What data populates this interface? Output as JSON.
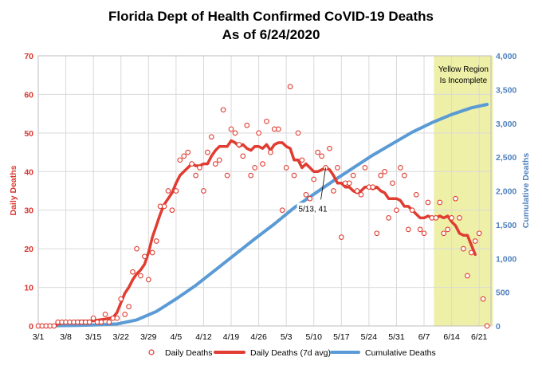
{
  "chart_data": {
    "type": "line",
    "title": "Florida Dept of Health Confirmed CoVID-19 Deaths",
    "subtitle": "As of 6/24/2020",
    "ylabel_left": "Daily Deaths",
    "ylabel_right": "Cumulative Deaths",
    "ylim_left": [
      0,
      70
    ],
    "ylim_right": [
      0,
      4000
    ],
    "yticks_left": [
      "0",
      "10",
      "20",
      "30",
      "40",
      "50",
      "60",
      "70"
    ],
    "yticks_right": [
      "0",
      "500",
      "1,000",
      "1,500",
      "2,000",
      "2,500",
      "3,000",
      "3,500",
      "4,000"
    ],
    "x_tick_labels": [
      "3/1",
      "3/8",
      "3/15",
      "3/22",
      "3/29",
      "4/5",
      "4/12",
      "4/19",
      "4/26",
      "5/3",
      "5/10",
      "5/17",
      "5/24",
      "5/31",
      "6/7",
      "6/14",
      "6/21"
    ],
    "x_day_start": "3/1",
    "x_day_count": 116,
    "grid": true,
    "legend_position": "bottom",
    "legend": [
      "Daily Deaths",
      "Daily Deaths (7d avg)",
      "Cumulative Deaths"
    ],
    "region": {
      "label_line1": "Yellow Region",
      "label_line2": "Is Incomplete",
      "from_day": 100.5,
      "to_day": 115.5,
      "color": "#eef0a8"
    },
    "annotation": {
      "text": "5/13, 41",
      "day": 73,
      "value": 41
    },
    "colors": {
      "daily": "#e03c31",
      "avg": "#e03c31",
      "cumulative": "#5b9bd5",
      "left_axis": "#d9342b",
      "right_axis": "#4f81bd"
    },
    "series": [
      {
        "name": "Daily Deaths",
        "style": "markers",
        "x": [
          0,
          1,
          2,
          3,
          4,
          5,
          6,
          7,
          8,
          9,
          10,
          11,
          12,
          13,
          14,
          15,
          16,
          17,
          18,
          19,
          20,
          21,
          22,
          23,
          24,
          25,
          26,
          27,
          28,
          29,
          30,
          31,
          32,
          33,
          34,
          35,
          36,
          37,
          38,
          39,
          40,
          41,
          42,
          43,
          44,
          45,
          46,
          47,
          48,
          49,
          50,
          51,
          52,
          53,
          54,
          55,
          56,
          57,
          58,
          59,
          60,
          61,
          62,
          63,
          64,
          65,
          66,
          67,
          68,
          69,
          70,
          71,
          72,
          73,
          74,
          75,
          76,
          77,
          78,
          79,
          80,
          81,
          82,
          83,
          84,
          85,
          86,
          87,
          88,
          89,
          90,
          91,
          92,
          93,
          94,
          95,
          96,
          97,
          98,
          99,
          100,
          101,
          102,
          103,
          104,
          105,
          106,
          107,
          108,
          109,
          110,
          111,
          112,
          113,
          114
        ],
        "values": [
          0,
          0,
          0,
          0,
          0,
          1,
          1,
          1,
          1,
          1,
          1,
          1,
          1,
          1,
          2,
          1,
          1,
          3,
          1,
          2,
          2,
          7,
          3,
          5,
          14,
          20,
          13,
          18,
          12,
          19,
          22,
          31,
          31,
          35,
          30,
          35,
          43,
          44,
          45,
          42,
          39,
          41,
          35,
          45,
          49,
          42,
          43,
          56,
          39,
          51,
          50,
          47,
          44,
          52,
          39,
          41,
          50,
          42,
          53,
          45,
          51,
          51,
          30,
          41,
          62,
          39,
          50,
          43,
          34,
          33,
          38,
          45,
          44,
          41,
          46,
          35,
          41,
          23,
          37,
          37,
          39,
          35,
          34,
          41,
          36,
          36,
          24,
          39,
          40,
          28,
          37,
          30,
          41,
          39,
          25,
          30,
          34,
          25,
          24,
          32,
          28,
          28,
          32,
          24,
          25,
          28,
          33,
          28,
          20,
          13,
          19,
          22,
          24,
          7,
          0
        ]
      },
      {
        "name": "Daily Deaths (7d avg)",
        "style": "line",
        "x": [
          0,
          2,
          4,
          5,
          7,
          9,
          11,
          13,
          15,
          17,
          19,
          20,
          21,
          22,
          23,
          24,
          25,
          26,
          27,
          28,
          29,
          30,
          31,
          32,
          33,
          34,
          35,
          36,
          37,
          38,
          39,
          40,
          41,
          42,
          43,
          44,
          45,
          46,
          47,
          48,
          49,
          50,
          51,
          52,
          53,
          54,
          55,
          56,
          57,
          58,
          59,
          60,
          61,
          62,
          63,
          64,
          65,
          66,
          67,
          68,
          69,
          70,
          71,
          72,
          73,
          74,
          75,
          76,
          77,
          78,
          79,
          80,
          81,
          82,
          83,
          84,
          85,
          86,
          87,
          88,
          89,
          90,
          91,
          92,
          93,
          94,
          95,
          96,
          97,
          98,
          99,
          100,
          101,
          102,
          103,
          104,
          105,
          106,
          107,
          108,
          109,
          110,
          111
        ],
        "values": [
          0,
          0,
          0,
          0.5,
          1,
          1.2,
          1.3,
          1.3,
          1.5,
          1.8,
          2.2,
          3.5,
          6,
          8.5,
          10,
          12,
          13.5,
          14.5,
          16,
          19,
          23,
          26,
          29,
          31.5,
          33,
          34.5,
          37,
          39,
          40,
          41,
          42,
          41.5,
          41.5,
          42,
          42,
          44,
          45.5,
          46.5,
          46.5,
          46.5,
          48,
          47.5,
          46.5,
          47,
          46,
          45.5,
          46.5,
          46.5,
          46,
          47,
          45.5,
          47,
          47.5,
          47.5,
          46.5,
          46,
          43,
          43,
          41,
          42,
          41,
          40,
          40,
          40.5,
          41,
          40.5,
          39,
          37,
          37,
          36,
          36,
          35,
          34.5,
          35,
          36,
          36,
          35.5,
          36,
          35,
          34.5,
          33,
          33,
          33,
          32.5,
          31,
          31,
          30,
          29,
          28,
          28,
          28.5,
          28,
          28,
          28.5,
          28,
          28.5,
          27,
          26,
          24,
          23.5,
          23.5,
          21,
          18.5
        ]
      },
      {
        "name": "Cumulative Deaths",
        "style": "line",
        "axis": "right",
        "x": [
          0,
          5,
          10,
          15,
          20,
          25,
          30,
          35,
          40,
          45,
          50,
          55,
          60,
          65,
          70,
          75,
          80,
          85,
          90,
          95,
          100,
          105,
          110,
          114
        ],
        "values": [
          0,
          5,
          10,
          17,
          30,
          90,
          215,
          400,
          600,
          830,
          1060,
          1290,
          1510,
          1750,
          1950,
          2150,
          2340,
          2530,
          2700,
          2870,
          3010,
          3130,
          3230,
          3280
        ]
      }
    ]
  }
}
